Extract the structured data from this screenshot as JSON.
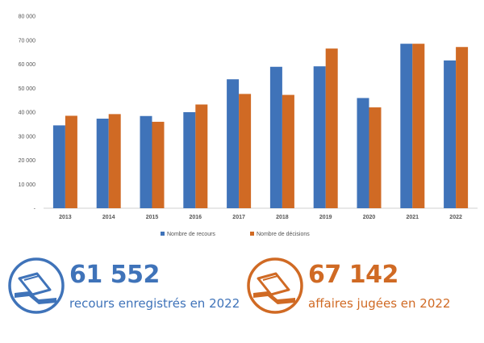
{
  "colors": {
    "recours": "#3f73b9",
    "decisions": "#d06a24",
    "axis_text": "#555555"
  },
  "chart_data": {
    "type": "bar",
    "categories": [
      "2013",
      "2014",
      "2015",
      "2016",
      "2017",
      "2018",
      "2019",
      "2020",
      "2021",
      "2022"
    ],
    "series": [
      {
        "name": "Nombre de recours",
        "values": [
          34500,
          37300,
          38400,
          40000,
          53700,
          58900,
          59100,
          45900,
          68500,
          61552
        ]
      },
      {
        "name": "Nombre de décisions",
        "values": [
          38500,
          39200,
          36000,
          43200,
          47600,
          47200,
          66500,
          42000,
          68500,
          67142
        ]
      }
    ],
    "yticks": [
      "-",
      "10 000",
      "20 000",
      "30 000",
      "40 000",
      "50 000",
      "60 000",
      "70 000",
      "80 000"
    ],
    "ylim": [
      0,
      80000
    ],
    "grid": false,
    "legend_position": "bottom"
  },
  "stats": {
    "left": {
      "number": "61 552",
      "label": "recours enregistrés en 2022",
      "icon": "documents-icon"
    },
    "right": {
      "number": "67 142",
      "label": "affaires jugées en 2022",
      "icon": "documents-icon"
    }
  }
}
